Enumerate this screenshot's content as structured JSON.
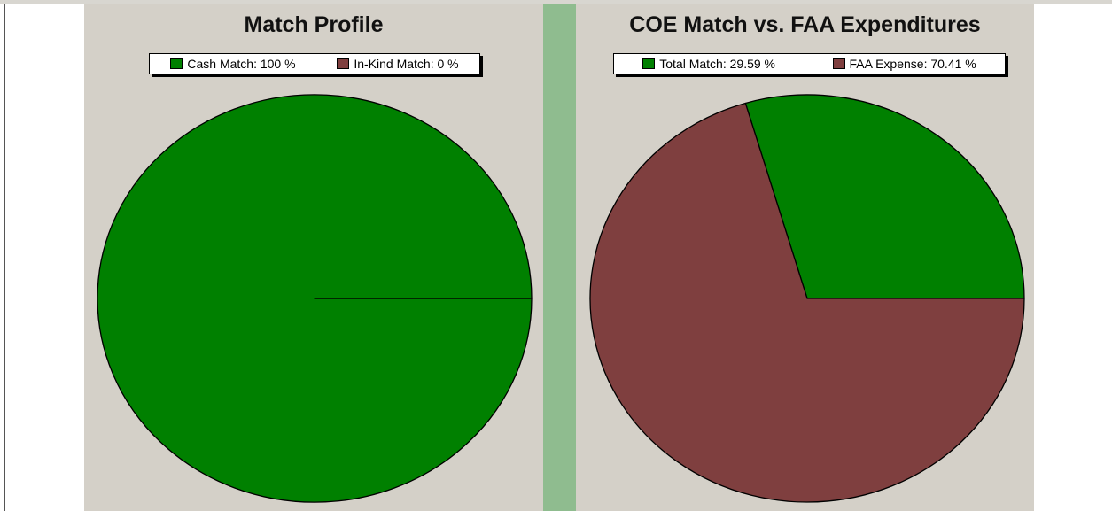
{
  "chart_data": [
    {
      "type": "pie",
      "title": "Match Profile",
      "labels": [
        "Cash Match",
        "In-Kind Match"
      ],
      "values": [
        100,
        0
      ],
      "value_labels": [
        "100 %",
        "0 %"
      ],
      "colors": [
        "#008000",
        "#7f3f3f"
      ]
    },
    {
      "type": "pie",
      "title": "COE Match vs. FAA Expenditures",
      "labels": [
        "Total Match",
        "FAA Expense"
      ],
      "values": [
        29.59,
        70.41
      ],
      "value_labels": [
        "29.59 %",
        "70.41 %"
      ],
      "colors": [
        "#008000",
        "#7f3f3f"
      ]
    }
  ]
}
